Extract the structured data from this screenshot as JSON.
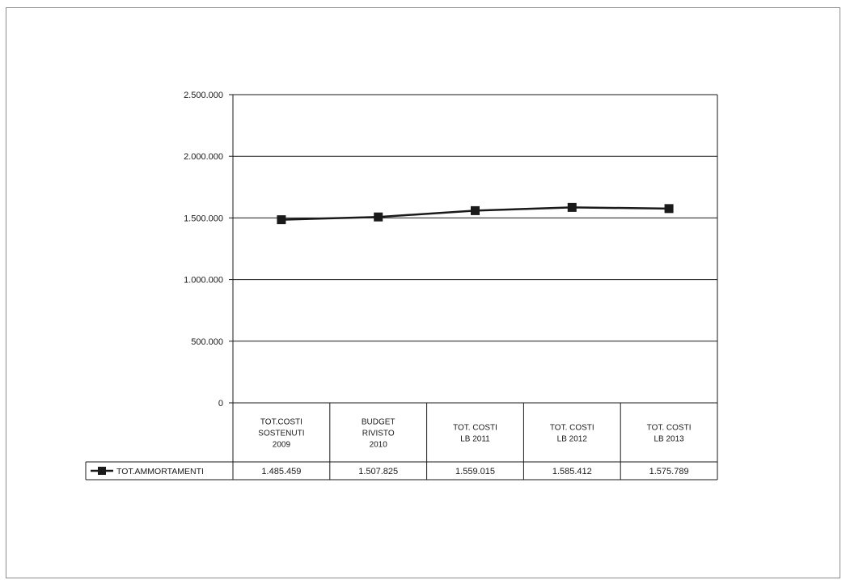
{
  "chart_data": {
    "type": "line",
    "categories": [
      [
        "TOT.COSTI",
        "SOSTENUTI",
        "2009"
      ],
      [
        "BUDGET",
        "RIVISTO",
        "2010"
      ],
      [
        "TOT. COSTI",
        "LB 2011"
      ],
      [
        "TOT. COSTI",
        "LB 2012"
      ],
      [
        "TOT. COSTI",
        "LB 2013"
      ]
    ],
    "series": [
      {
        "name": "TOT.AMMORTAMENTI",
        "values": [
          1485459,
          1507825,
          1559015,
          1585412,
          1575789
        ],
        "value_labels": [
          "1.485.459",
          "1.507.825",
          "1.559.015",
          "1.585.412",
          "1.575.789"
        ],
        "color": "#1a1a1a"
      }
    ],
    "yticks": [
      0,
      500000,
      1000000,
      1500000,
      2000000,
      2500000
    ],
    "ytick_labels": [
      "0",
      "500.000",
      "1.000.000",
      "1.500.000",
      "2.000.000",
      "2.500.000"
    ],
    "ylim": [
      0,
      2500000
    ],
    "grid": true,
    "legend": "data-table-left",
    "title": "",
    "xlabel": "",
    "ylabel": ""
  }
}
